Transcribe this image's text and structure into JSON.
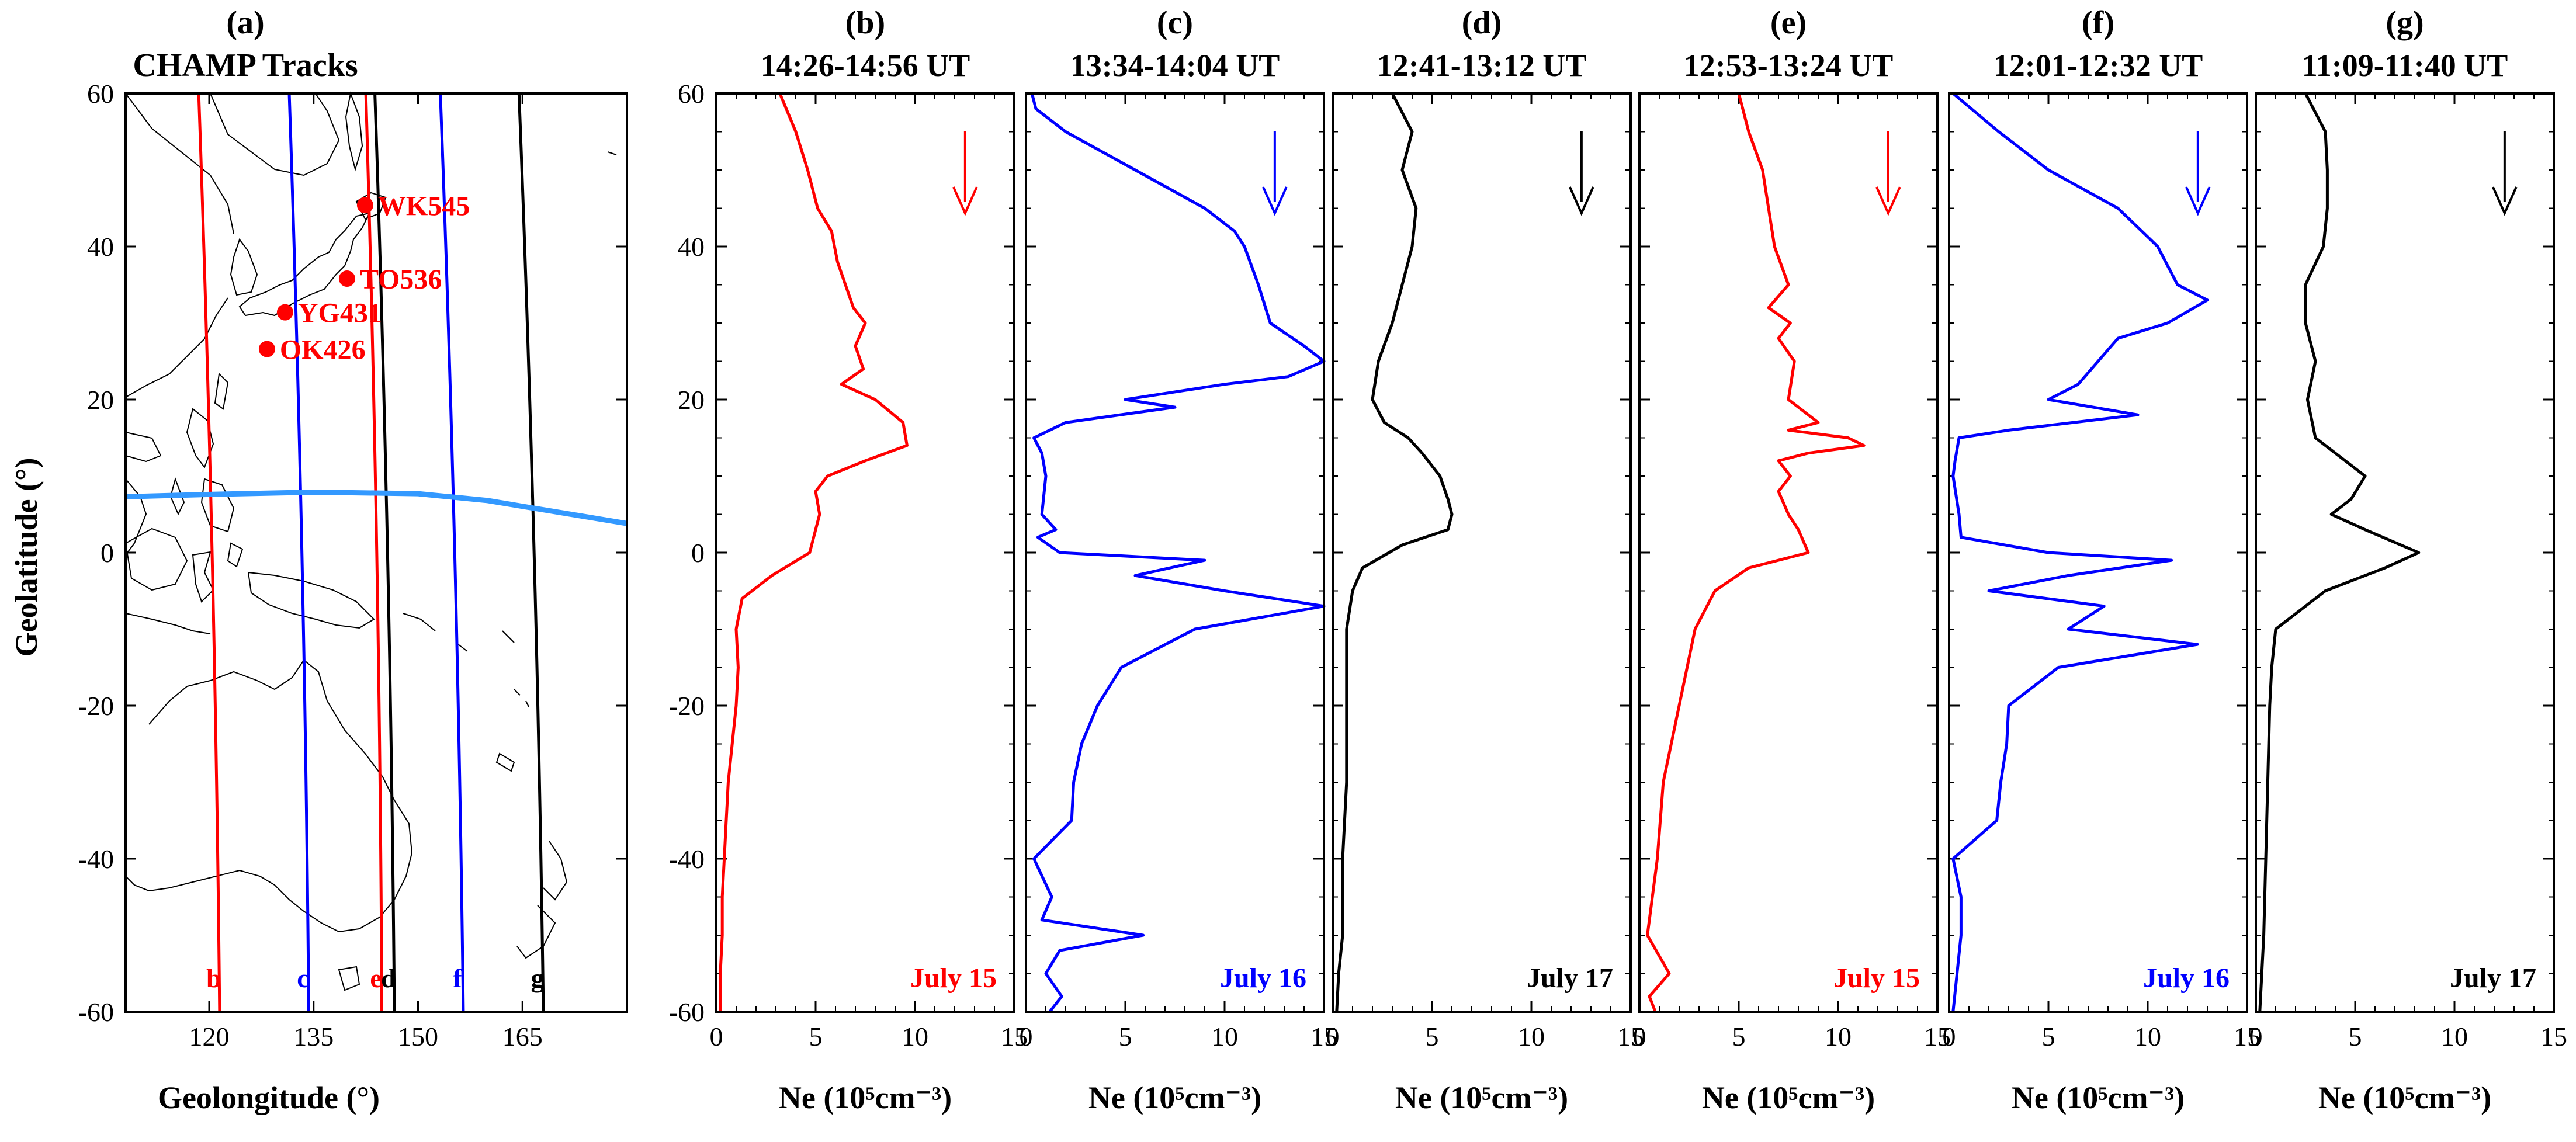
{
  "colors": {
    "red": "#ff0000",
    "blue": "#0000ff",
    "black": "#000000",
    "equator": "#3399ff"
  },
  "map_panel": {
    "letter": "(a)",
    "title": "CHAMP Tracks",
    "xlabel": "Geolongitude (°)",
    "ylabel": "Geolatitude (°)",
    "xlim": [
      108,
      180
    ],
    "ylim": [
      -60,
      60
    ],
    "xticks": [
      "120",
      "135",
      "150",
      "165"
    ],
    "yticks": [
      "60",
      "40",
      "20",
      "0",
      "-20",
      "-40",
      "-60"
    ],
    "stations": [
      {
        "name": "WK545",
        "lon": 142.4,
        "lat": 45.4
      },
      {
        "name": "TO536",
        "lon": 139.8,
        "lat": 35.8
      },
      {
        "name": "YG431",
        "lon": 130.9,
        "lat": 31.4
      },
      {
        "name": "OK426",
        "lon": 128.3,
        "lat": 26.6
      }
    ],
    "tracks": [
      {
        "label": "b",
        "color": "#ff0000",
        "lon_north": 118.5,
        "lon_south": 121.5
      },
      {
        "label": "c",
        "color": "#0000ff",
        "lon_north": 131.5,
        "lon_south": 134.3
      },
      {
        "label": "e",
        "color": "#ff0000",
        "lon_north": 142.5,
        "lon_south": 144.8
      },
      {
        "label": "d",
        "color": "#000000",
        "lon_north": 143.8,
        "lon_south": 146.6
      },
      {
        "label": "f",
        "color": "#0000ff",
        "lon_north": 153.2,
        "lon_south": 156.5
      },
      {
        "label": "g",
        "color": "#000000",
        "lon_north": 164.5,
        "lon_south": 168.0
      }
    ],
    "magnetic_equator": [
      [
        108,
        7.3
      ],
      [
        120,
        7.6
      ],
      [
        135,
        7.9
      ],
      [
        150,
        7.7
      ],
      [
        160,
        6.8
      ],
      [
        170,
        5.3
      ],
      [
        180,
        3.8
      ]
    ]
  },
  "chart_data": [
    {
      "type": "line",
      "letter": "(b)",
      "title": "14:26-14:56 UT",
      "date": "July 15",
      "color": "#ff0000",
      "xlabel": "Ne (10⁵cm⁻³)",
      "ylabel": "Geolatitude (°)",
      "xlim": [
        0,
        15
      ],
      "ylim": [
        -60,
        60
      ],
      "xticks": [
        "0",
        "5",
        "10",
        "15"
      ],
      "lat": [
        60,
        55,
        50,
        45,
        42,
        38,
        35,
        32,
        30,
        27,
        24,
        22,
        20,
        17,
        14,
        12,
        10,
        8,
        5,
        0,
        -3,
        -6,
        -10,
        -15,
        -20,
        -30,
        -40,
        -45,
        -50,
        -55,
        -60
      ],
      "ne": [
        3.2,
        4.0,
        4.6,
        5.1,
        5.8,
        6.1,
        6.5,
        6.9,
        7.5,
        7.0,
        7.4,
        6.3,
        8.0,
        9.4,
        9.6,
        7.5,
        5.6,
        5.0,
        5.2,
        4.7,
        2.8,
        1.3,
        1.0,
        1.1,
        1.0,
        0.6,
        0.4,
        0.3,
        0.3,
        0.2,
        0.2
      ]
    },
    {
      "type": "line",
      "letter": "(c)",
      "title": "13:34-14:04 UT",
      "date": "July 16",
      "color": "#0000ff",
      "xlabel": "Ne (10⁵cm⁻³)",
      "ylabel": "Geolatitude (°)",
      "xlim": [
        0,
        15
      ],
      "ylim": [
        -60,
        60
      ],
      "xticks": [
        "0",
        "5",
        "10",
        "15"
      ],
      "lat": [
        60,
        58,
        55,
        50,
        45,
        42,
        40,
        35,
        30,
        27,
        25,
        23,
        22,
        20,
        19,
        17,
        15,
        13,
        10,
        5,
        3,
        2,
        0,
        -1,
        -3,
        -5,
        -7,
        -10,
        -15,
        -20,
        -25,
        -30,
        -35,
        -40,
        -45,
        -48,
        -50,
        -52,
        -55,
        -58,
        -60
      ],
      "ne": [
        0.3,
        0.5,
        2.0,
        5.5,
        9.0,
        10.5,
        11.0,
        11.7,
        12.3,
        14.0,
        15.0,
        13.2,
        10.0,
        5.0,
        7.5,
        2.0,
        0.4,
        0.8,
        1.0,
        0.8,
        1.5,
        0.6,
        1.7,
        9.0,
        5.5,
        10.0,
        15.0,
        8.5,
        4.8,
        3.6,
        2.8,
        2.4,
        2.3,
        0.4,
        1.3,
        0.8,
        5.9,
        1.7,
        1.0,
        1.8,
        1.2
      ]
    },
    {
      "type": "line",
      "letter": "(d)",
      "title": "12:41-13:12 UT",
      "date": "July 17",
      "color": "#000000",
      "xlabel": "Ne (10⁵cm⁻³)",
      "ylabel": "Geolatitude (°)",
      "xlim": [
        0,
        15
      ],
      "ylim": [
        -60,
        60
      ],
      "xticks": [
        "0",
        "5",
        "10",
        "15"
      ],
      "lat": [
        60,
        55,
        50,
        45,
        40,
        35,
        30,
        25,
        20,
        17,
        15,
        13,
        10,
        7,
        5,
        3,
        1,
        -2,
        -5,
        -10,
        -20,
        -30,
        -40,
        -50,
        -55,
        -60
      ],
      "ne": [
        3.0,
        4.0,
        3.5,
        4.2,
        4.0,
        3.5,
        3.0,
        2.3,
        2.0,
        2.6,
        3.8,
        4.5,
        5.4,
        5.8,
        6.0,
        5.8,
        3.5,
        1.5,
        1.0,
        0.7,
        0.7,
        0.7,
        0.5,
        0.5,
        0.3,
        0.2
      ]
    },
    {
      "type": "line",
      "letter": "(e)",
      "title": "12:53-13:24 UT",
      "date": "July 15",
      "color": "#ff0000",
      "xlabel": "Ne (10⁵cm⁻³)",
      "ylabel": "Geolatitude (°)",
      "xlim": [
        0,
        15
      ],
      "ylim": [
        -60,
        60
      ],
      "xticks": [
        "0",
        "5",
        "10",
        "15"
      ],
      "lat": [
        60,
        55,
        50,
        45,
        40,
        35,
        32,
        30,
        28,
        25,
        20,
        17,
        16,
        15,
        14,
        13,
        12,
        10,
        8,
        5,
        3,
        0,
        -2,
        -5,
        -10,
        -20,
        -30,
        -40,
        -50,
        -55,
        -58,
        -60
      ],
      "ne": [
        5.0,
        5.5,
        6.2,
        6.5,
        6.8,
        7.5,
        6.5,
        7.6,
        7.0,
        7.8,
        7.5,
        9.0,
        7.5,
        10.5,
        11.3,
        8.5,
        7.0,
        7.6,
        7.0,
        7.5,
        8.0,
        8.5,
        5.5,
        3.8,
        2.8,
        2.0,
        1.2,
        0.9,
        0.4,
        1.5,
        0.5,
        0.8
      ]
    },
    {
      "type": "line",
      "letter": "(f)",
      "title": "12:01-12:32 UT",
      "date": "July 16",
      "color": "#0000ff",
      "xlabel": "Ne (10⁵cm⁻³)",
      "ylabel": "Geolatitude (°)",
      "xlim": [
        0,
        15
      ],
      "ylim": [
        -60,
        60
      ],
      "xticks": [
        "0",
        "5",
        "10",
        "15"
      ],
      "lat": [
        60,
        55,
        50,
        45,
        40,
        35,
        33,
        30,
        28,
        25,
        22,
        20,
        18,
        16,
        15,
        12,
        10,
        5,
        2,
        0,
        -1,
        -3,
        -5,
        -7,
        -10,
        -12,
        -15,
        -20,
        -25,
        -30,
        -35,
        -40,
        -45,
        -50,
        -55,
        -60
      ],
      "ne": [
        0.2,
        2.5,
        5.0,
        8.5,
        10.5,
        11.5,
        13.0,
        11.0,
        8.5,
        7.5,
        6.5,
        5.0,
        9.5,
        3.0,
        0.5,
        0.3,
        0.2,
        0.5,
        0.6,
        5.0,
        11.2,
        6.0,
        2.0,
        7.8,
        6.0,
        12.5,
        5.5,
        3.0,
        2.9,
        2.6,
        2.4,
        0.2,
        0.6,
        0.6,
        0.4,
        0.2
      ]
    },
    {
      "type": "line",
      "letter": "(g)",
      "title": "11:09-11:40 UT",
      "date": "July 17",
      "color": "#000000",
      "xlabel": "Ne (10⁵cm⁻³)",
      "ylabel": "Geolatitude (°)",
      "xlim": [
        0,
        15
      ],
      "ylim": [
        -60,
        60
      ],
      "xticks": [
        "0",
        "5",
        "10",
        "15"
      ],
      "lat": [
        60,
        55,
        50,
        45,
        40,
        35,
        30,
        25,
        20,
        15,
        10,
        7,
        5,
        3,
        0,
        -2,
        -5,
        -10,
        -15,
        -20,
        -30,
        -40,
        -50,
        -55,
        -60
      ],
      "ne": [
        2.5,
        3.5,
        3.6,
        3.6,
        3.4,
        2.5,
        2.5,
        3.0,
        2.6,
        3.0,
        5.5,
        4.8,
        3.8,
        5.5,
        8.2,
        6.5,
        3.5,
        1.0,
        0.8,
        0.7,
        0.6,
        0.5,
        0.4,
        0.3,
        0.2
      ]
    }
  ]
}
